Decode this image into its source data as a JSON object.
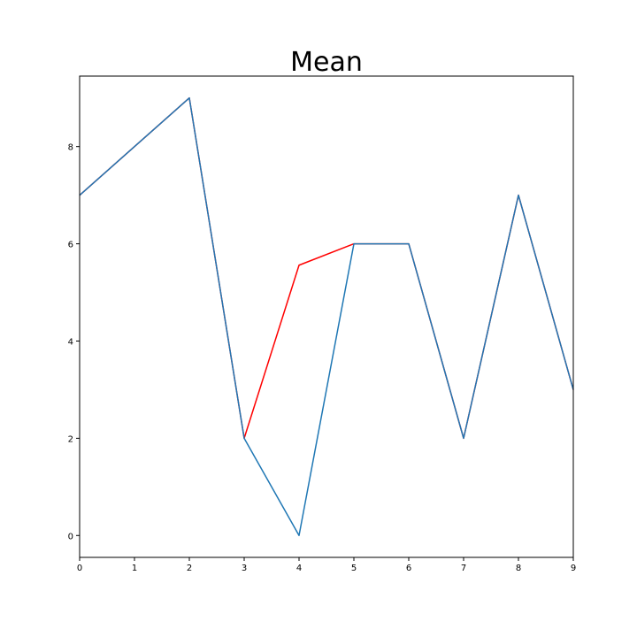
{
  "chart_data": {
    "type": "line",
    "title": "Mean",
    "xlabel": "",
    "ylabel": "",
    "xlim": [
      0,
      9
    ],
    "ylim": [
      -0.45,
      9.45
    ],
    "xticks": [
      0,
      1,
      2,
      3,
      4,
      5,
      6,
      7,
      8,
      9
    ],
    "yticks": [
      0,
      2,
      4,
      6,
      8
    ],
    "grid": false,
    "series": [
      {
        "color": "#ff0000",
        "x": [
          0,
          1,
          2,
          3,
          4,
          5,
          6,
          7,
          8,
          9
        ],
        "values": [
          7,
          8,
          9,
          2,
          5.56,
          6,
          6,
          2,
          7,
          3
        ]
      },
      {
        "color": "#1f77b4",
        "x": [
          0,
          1,
          2,
          3,
          4,
          5,
          6,
          7,
          8,
          9
        ],
        "values": [
          7,
          8,
          9,
          2,
          0,
          6,
          6,
          2,
          7,
          3
        ]
      }
    ]
  }
}
